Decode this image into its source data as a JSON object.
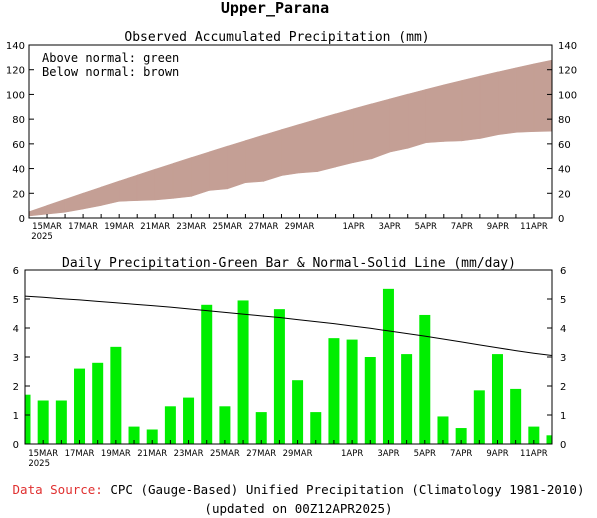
{
  "title": "Upper_Parana",
  "source_label": "Data Source:",
  "source_text": "CPC (Gauge-Based) Unified Precipitation (Climatology 1981-2010)",
  "updated_text": "(updated on 00Z12APR2025)",
  "colors": {
    "above_fill": "#00dd00",
    "below_fill": "#c49f95",
    "bar": "#00ee00",
    "source_label": "#e03030"
  },
  "chart_data": [
    {
      "type": "area",
      "title": "Observed Accumulated Precipitation (mm)",
      "annotations": [
        "Above normal: green",
        "Below normal: brown"
      ],
      "x": [
        "14MAR",
        "15MAR",
        "16MAR",
        "17MAR",
        "18MAR",
        "19MAR",
        "20MAR",
        "21MAR",
        "22MAR",
        "23MAR",
        "24MAR",
        "25MAR",
        "26MAR",
        "27MAR",
        "28MAR",
        "29MAR",
        "30MAR",
        "31MAR",
        "1APR",
        "2APR",
        "3APR",
        "4APR",
        "5APR",
        "6APR",
        "7APR",
        "8APR",
        "9APR",
        "10APR",
        "11APR",
        "12APR"
      ],
      "xtick_labels": [
        {
          "day": 1,
          "label": "15MAR",
          "year": "2025"
        },
        {
          "day": 3,
          "label": "17MAR"
        },
        {
          "day": 5,
          "label": "19MAR"
        },
        {
          "day": 7,
          "label": "21MAR"
        },
        {
          "day": 9,
          "label": "23MAR"
        },
        {
          "day": 11,
          "label": "25MAR"
        },
        {
          "day": 13,
          "label": "27MAR"
        },
        {
          "day": 15,
          "label": "29MAR"
        },
        {
          "day": 18,
          "label": "1APR"
        },
        {
          "day": 20,
          "label": "3APR"
        },
        {
          "day": 22,
          "label": "5APR"
        },
        {
          "day": 24,
          "label": "7APR"
        },
        {
          "day": 26,
          "label": "9APR"
        },
        {
          "day": 28,
          "label": "11APR"
        }
      ],
      "series": [
        {
          "name": "Observed",
          "values": [
            1.7,
            3.2,
            4.7,
            7.3,
            10.1,
            13.5,
            14.1,
            14.6,
            15.9,
            17.5,
            22.3,
            23.6,
            28.6,
            29.7,
            34.3,
            36.5,
            37.6,
            41.3,
            44.9,
            47.9,
            53.3,
            56.4,
            60.9,
            61.9,
            62.4,
            64.3,
            67.4,
            69.3,
            69.9,
            70.2
          ]
        },
        {
          "name": "Normal",
          "values": [
            5.1,
            10.1,
            15.1,
            20.1,
            25.0,
            29.9,
            34.7,
            39.5,
            44.2,
            48.9,
            53.5,
            58.1,
            62.6,
            67.1,
            71.5,
            75.8,
            80.1,
            84.3,
            88.4,
            92.4,
            96.3,
            100.2,
            104.0,
            107.7,
            111.3,
            114.8,
            118.2,
            121.5,
            124.7,
            127.8
          ]
        }
      ],
      "ylim": [
        0,
        140
      ],
      "yticks": [
        0,
        20,
        40,
        60,
        80,
        100,
        120,
        140
      ],
      "grid": false
    },
    {
      "type": "bar",
      "title": "Daily Precipitation-Green Bar & Normal-Solid Line (mm/day)",
      "x": [
        "14MAR",
        "15MAR",
        "16MAR",
        "17MAR",
        "18MAR",
        "19MAR",
        "20MAR",
        "21MAR",
        "22MAR",
        "23MAR",
        "24MAR",
        "25MAR",
        "26MAR",
        "27MAR",
        "28MAR",
        "29MAR",
        "30MAR",
        "31MAR",
        "1APR",
        "2APR",
        "3APR",
        "4APR",
        "5APR",
        "6APR",
        "7APR",
        "8APR",
        "9APR",
        "10APR",
        "11APR",
        "12APR"
      ],
      "xtick_labels": [
        {
          "day": 1,
          "label": "15MAR",
          "year": "2025"
        },
        {
          "day": 3,
          "label": "17MAR"
        },
        {
          "day": 5,
          "label": "19MAR"
        },
        {
          "day": 7,
          "label": "21MAR"
        },
        {
          "day": 9,
          "label": "23MAR"
        },
        {
          "day": 11,
          "label": "25MAR"
        },
        {
          "day": 13,
          "label": "27MAR"
        },
        {
          "day": 15,
          "label": "29MAR"
        },
        {
          "day": 18,
          "label": "1APR"
        },
        {
          "day": 20,
          "label": "3APR"
        },
        {
          "day": 22,
          "label": "5APR"
        },
        {
          "day": 24,
          "label": "7APR"
        },
        {
          "day": 26,
          "label": "9APR"
        },
        {
          "day": 28,
          "label": "11APR"
        }
      ],
      "series": [
        {
          "name": "Daily",
          "values": [
            1.7,
            1.5,
            1.5,
            2.6,
            2.8,
            3.35,
            0.6,
            0.5,
            1.3,
            1.6,
            4.8,
            1.3,
            4.95,
            1.1,
            4.65,
            2.2,
            1.1,
            3.65,
            3.6,
            3.0,
            5.35,
            3.1,
            4.45,
            0.95,
            0.55,
            1.85,
            3.1,
            1.9,
            0.6,
            0.3
          ]
        },
        {
          "name": "Normal",
          "values": [
            5.1,
            5.06,
            5.01,
            4.97,
            4.92,
            4.87,
            4.82,
            4.77,
            4.72,
            4.66,
            4.6,
            4.54,
            4.48,
            4.42,
            4.36,
            4.29,
            4.22,
            4.15,
            4.07,
            3.99,
            3.9,
            3.81,
            3.72,
            3.62,
            3.52,
            3.42,
            3.32,
            3.22,
            3.13,
            3.05
          ]
        }
      ],
      "ylim": [
        0,
        6
      ],
      "yticks": [
        0,
        1,
        2,
        3,
        4,
        5,
        6
      ],
      "grid": false
    }
  ]
}
